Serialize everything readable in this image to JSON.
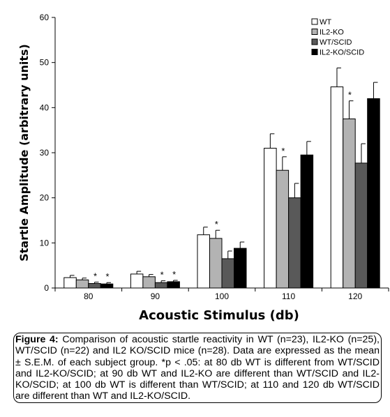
{
  "chart_data": {
    "type": "bar",
    "xlabel": "Acoustic Stimulus (db)",
    "ylabel": "Startle Amplitude (arbitrary units)",
    "ylim": [
      0,
      60
    ],
    "yticks": [
      "0",
      "10",
      "20",
      "30",
      "40",
      "50",
      "60"
    ],
    "categories": [
      "80",
      "90",
      "100",
      "110",
      "120"
    ],
    "legend_position": "top-right",
    "series": [
      {
        "name": "WT",
        "color": "#ffffff",
        "values": [
          2.3,
          3.1,
          11.8,
          31.0,
          44.6
        ],
        "errors": [
          0.5,
          0.6,
          1.7,
          3.2,
          4.2
        ]
      },
      {
        "name": "IL2-KO",
        "color": "#b3b3b3",
        "values": [
          1.8,
          2.5,
          11.0,
          26.1,
          37.5
        ],
        "errors": [
          0.4,
          0.5,
          1.8,
          3.0,
          4.0
        ]
      },
      {
        "name": "WT/SCID",
        "color": "#595959",
        "values": [
          1.0,
          1.2,
          6.5,
          20.0,
          27.7
        ],
        "errors": [
          0.3,
          0.4,
          1.7,
          3.2,
          4.3
        ]
      },
      {
        "name": "IL2-KO/SCID",
        "color": "#000000",
        "values": [
          0.9,
          1.4,
          8.8,
          29.5,
          42.0
        ],
        "errors": [
          0.3,
          0.3,
          1.4,
          3.0,
          3.6
        ]
      }
    ],
    "annotations": [
      {
        "category": "80",
        "series": "WT/SCID",
        "text": "*"
      },
      {
        "category": "80",
        "series": "IL2-KO/SCID",
        "text": "*"
      },
      {
        "category": "90",
        "series": "WT/SCID",
        "text": "*"
      },
      {
        "category": "90",
        "series": "IL2-KO/SCID",
        "text": "*"
      },
      {
        "category": "100",
        "series": "IL2-KO",
        "text": "*"
      },
      {
        "category": "110",
        "series": "IL2-KO",
        "text": "*"
      },
      {
        "category": "120",
        "series": "IL2-KO",
        "text": "*"
      }
    ]
  },
  "caption": {
    "label": "Figure 4:",
    "text": " Comparison of acoustic startle reactivity in WT (n=23), IL2-KO (n=25), WT/SCID (n=22) and IL2 KO/SCID mice (n=28).  Data are expressed as the mean ± S.E.M. of each subject group. *p < .05:  at 80 db WT is different from WT/SCID and IL2-KO/SCID; at 90 db WT and IL2-KO are different than WT/SCID and IL2-KO/SCID; at 100 db WT is different than WT/SCID; at 110 and 120 db WT/SCID are different than WT and IL2-KO/SCID."
  }
}
